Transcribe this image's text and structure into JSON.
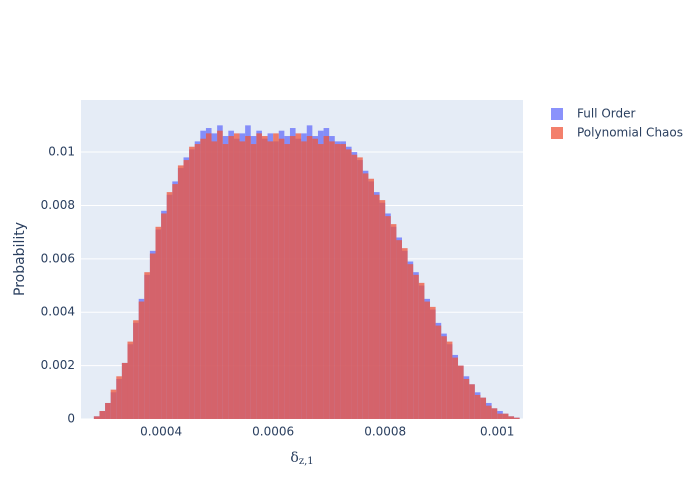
{
  "chart_data": {
    "type": "histogram",
    "barmode": "overlay",
    "opacity": 0.75,
    "xlabel_main": "δ",
    "xlabel_sub": "z,1",
    "ylabel": "Probability",
    "xlim": [
      0.000257,
      0.001046
    ],
    "ylim": [
      0,
      0.01195
    ],
    "xticks": [
      0.0004,
      0.0006,
      0.0008,
      0.001
    ],
    "yticks": [
      0,
      0.002,
      0.004,
      0.006,
      0.008,
      0.01
    ],
    "grid": true,
    "legend": "top-right",
    "bins": [
      0.00028,
      0.00029,
      0.0003,
      0.00031,
      0.00032,
      0.00033,
      0.00034,
      0.00035,
      0.00036,
      0.00037,
      0.00038,
      0.00039,
      0.0004,
      0.00041,
      0.00042,
      0.00043,
      0.00044,
      0.00045,
      0.00046,
      0.00047,
      0.00048,
      0.00049,
      0.0005,
      0.00051,
      0.00052,
      0.00053,
      0.00054,
      0.00055,
      0.00056,
      0.00057,
      0.00058,
      0.00059,
      0.0006,
      0.00061,
      0.00062,
      0.00063,
      0.00064,
      0.00065,
      0.00066,
      0.00067,
      0.00068,
      0.00069,
      0.0007,
      0.00071,
      0.00072,
      0.00073,
      0.00074,
      0.00075,
      0.00076,
      0.00077,
      0.00078,
      0.00079,
      0.0008,
      0.00081,
      0.00082,
      0.00083,
      0.00084,
      0.00085,
      0.00086,
      0.00087,
      0.00088,
      0.00089,
      0.0009,
      0.00091,
      0.00092,
      0.00093,
      0.00094,
      0.00095,
      0.00096,
      0.00097,
      0.00098,
      0.00099,
      0.001,
      0.00101,
      0.00102,
      0.00103,
      0.00104
    ],
    "series": [
      {
        "name": "Full Order",
        "color": "#636efa",
        "values": [
          0.0001,
          0.0003,
          0.0006,
          0.001,
          0.0015,
          0.0021,
          0.0028,
          0.0036,
          0.0045,
          0.0054,
          0.0063,
          0.0071,
          0.0078,
          0.0084,
          0.0089,
          0.0094,
          0.0098,
          0.0101,
          0.0104,
          0.0108,
          0.0109,
          0.0107,
          0.011,
          0.0106,
          0.0108,
          0.0105,
          0.0107,
          0.011,
          0.0106,
          0.0108,
          0.0105,
          0.0107,
          0.0104,
          0.0108,
          0.0106,
          0.0109,
          0.0105,
          0.0107,
          0.011,
          0.0106,
          0.0108,
          0.0109,
          0.0106,
          0.0104,
          0.0104,
          0.0102,
          0.01,
          0.0097,
          0.0093,
          0.0089,
          0.0085,
          0.0081,
          0.0077,
          0.0072,
          0.0068,
          0.0063,
          0.0059,
          0.0055,
          0.005,
          0.0045,
          0.0041,
          0.0036,
          0.0032,
          0.0028,
          0.0024,
          0.002,
          0.0016,
          0.0013,
          0.001,
          0.0008,
          0.0006,
          0.0004,
          0.0003,
          0.0002,
          0.0001,
          5e-05
        ]
      },
      {
        "name": "Polynomial Chaos",
        "color": "#EF553B",
        "values": [
          0.0001,
          0.0003,
          0.0006,
          0.0011,
          0.0016,
          0.0021,
          0.0029,
          0.0037,
          0.0044,
          0.0055,
          0.0062,
          0.0072,
          0.0077,
          0.0085,
          0.0088,
          0.0095,
          0.0097,
          0.0102,
          0.0103,
          0.0105,
          0.0107,
          0.0104,
          0.0108,
          0.0103,
          0.0106,
          0.0107,
          0.0104,
          0.0106,
          0.0103,
          0.0107,
          0.0106,
          0.0104,
          0.0107,
          0.0105,
          0.0103,
          0.0106,
          0.0107,
          0.0104,
          0.0106,
          0.0105,
          0.0103,
          0.0106,
          0.0104,
          0.0103,
          0.0103,
          0.0101,
          0.0099,
          0.0098,
          0.0092,
          0.009,
          0.0084,
          0.0082,
          0.0076,
          0.0073,
          0.0067,
          0.0064,
          0.0058,
          0.0054,
          0.0051,
          0.0044,
          0.0042,
          0.0035,
          0.0031,
          0.0029,
          0.0023,
          0.002,
          0.0015,
          0.0013,
          0.0009,
          0.0008,
          0.0005,
          0.0004,
          0.0002,
          0.0002,
          0.0001,
          5e-05
        ]
      }
    ]
  }
}
